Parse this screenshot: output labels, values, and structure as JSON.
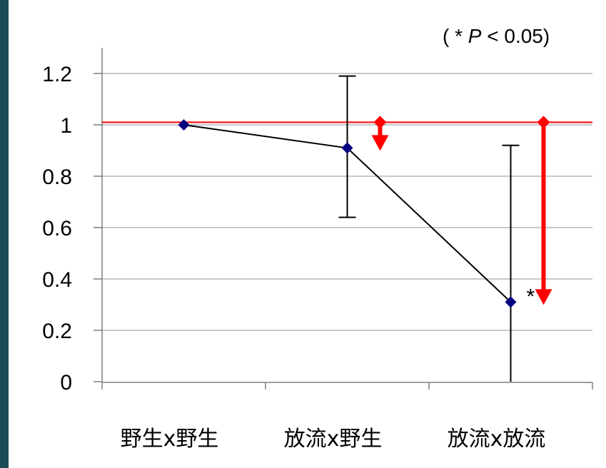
{
  "chart_data": {
    "type": "line",
    "title": "",
    "xlabel": "",
    "ylabel": "",
    "categories": [
      "野生x野生",
      "放流x野生",
      "放流x放流"
    ],
    "series": [
      {
        "values": [
          1.0,
          0.91,
          0.31
        ],
        "error_low": [
          1.0,
          0.64,
          0.0
        ],
        "error_high": [
          1.0,
          1.19,
          0.92
        ],
        "color": "#000080"
      }
    ],
    "ylim": [
      0,
      1.2
    ],
    "yticks": [
      "0",
      "0.2",
      "0.4",
      "0.6",
      "0.8",
      "1",
      "1.2"
    ],
    "yticks_values": [
      0,
      0.2,
      0.4,
      0.6,
      0.8,
      1.0,
      1.2
    ],
    "grid": true,
    "reference_line": {
      "value": 1.01,
      "color": "#ff0000"
    },
    "arrows": [
      {
        "after_category": 1,
        "from": 1.01,
        "to": 0.91,
        "color": "#ff0000"
      },
      {
        "after_category": 2,
        "from": 1.01,
        "to": 0.31,
        "color": "#ff0000"
      }
    ],
    "significance": [
      {
        "category": 2,
        "label": "*"
      }
    ],
    "annotation": {
      "prefix": "( * ",
      "p": "P",
      "suffix": " < 0.05)"
    }
  }
}
